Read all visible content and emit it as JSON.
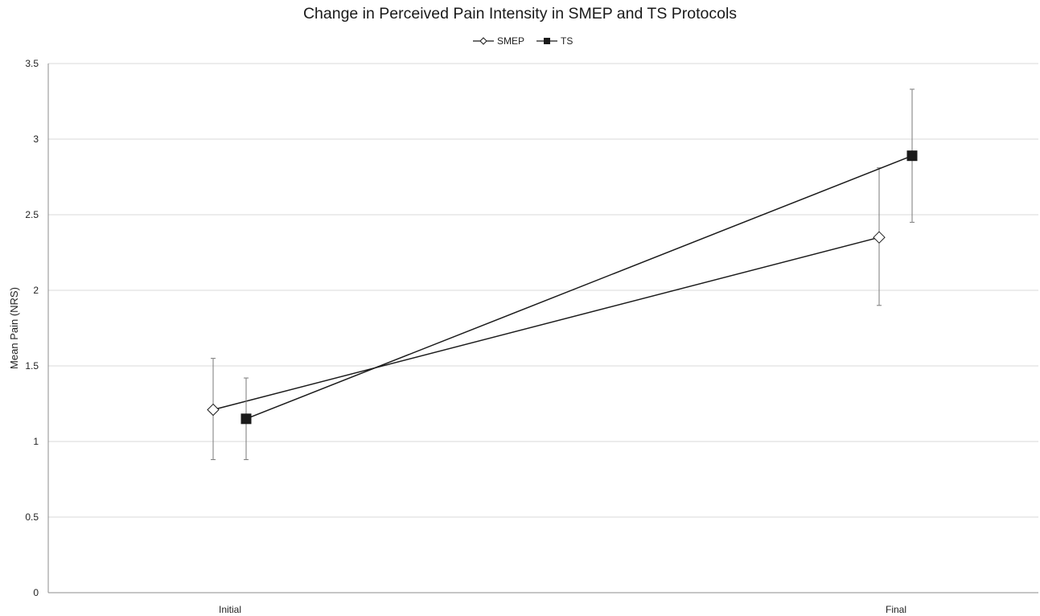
{
  "chart_data": {
    "type": "line",
    "title": "Change in Perceived Pain Intensity in SMEP and TS Protocols",
    "xlabel": "",
    "ylabel": "Mean Pain (NRS)",
    "categories": [
      "Initial",
      "Final"
    ],
    "ylim": [
      0,
      3.5
    ],
    "yticks": [
      "0",
      "0.5",
      "1",
      "1.5",
      "2",
      "2.5",
      "3",
      "3.5"
    ],
    "grid": true,
    "legend_position": "top-center",
    "series": [
      {
        "name": "SMEP",
        "marker": "diamond-open",
        "color": "#1a1a1a",
        "values": [
          1.21,
          2.35
        ],
        "error_upper": [
          1.55,
          2.81
        ],
        "error_lower": [
          0.88,
          1.9
        ]
      },
      {
        "name": "TS",
        "marker": "square-filled",
        "color": "#1a1a1a",
        "values": [
          1.15,
          2.89
        ],
        "error_upper": [
          1.42,
          3.33
        ],
        "error_lower": [
          0.88,
          2.45
        ]
      }
    ]
  }
}
